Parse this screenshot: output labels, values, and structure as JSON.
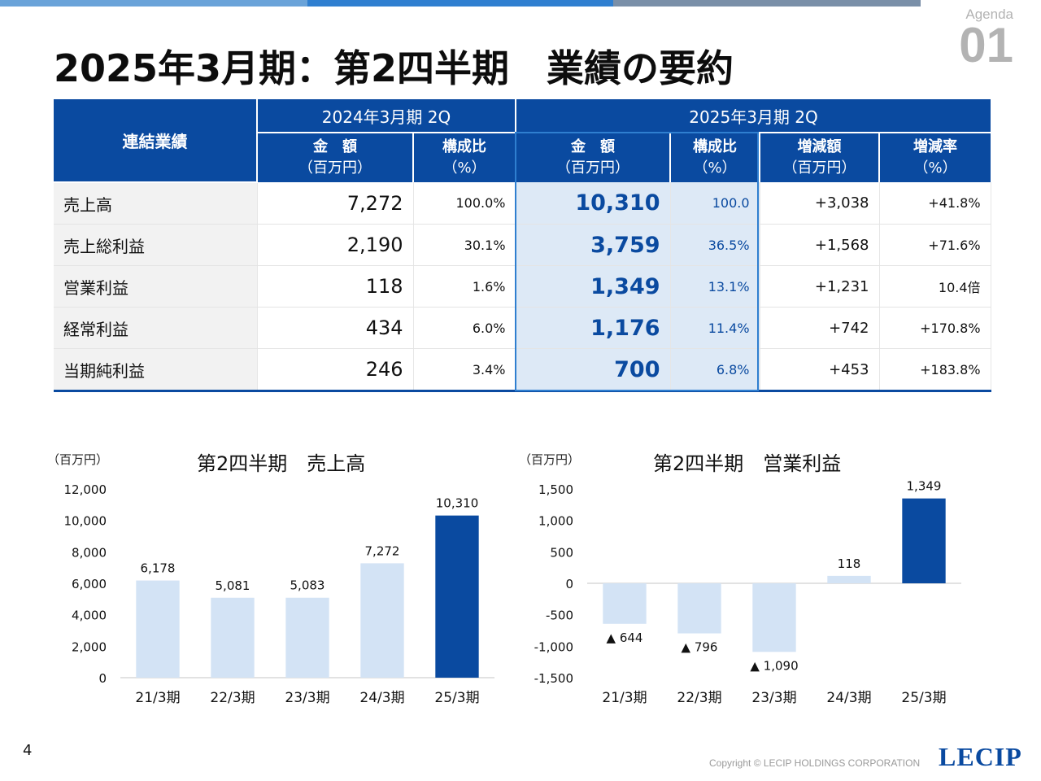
{
  "header": {
    "agenda_label": "Agenda",
    "agenda_number": "01",
    "title": "2025年3月期：第2四半期　業績の要約",
    "bar_colors": [
      "#6aa3d9",
      "#2f7fd0",
      "#7a8fa8"
    ]
  },
  "table": {
    "corner": "連結業績",
    "period_prev": "2024年3月期 2Q",
    "period_cur": "2025年3月期 2Q",
    "col_amount": "金　額",
    "col_amount_unit": "（百万円）",
    "col_ratio": "構成比",
    "col_ratio_unit": "（%）",
    "col_change": "増減額",
    "col_change_unit": "（百万円）",
    "col_rate": "増減率",
    "col_rate_unit": "（%）",
    "rows": [
      {
        "label": "売上高",
        "prev_amount": "7,272",
        "prev_ratio": "100.0%",
        "cur_amount": "10,310",
        "cur_ratio": "100.0",
        "change": "+3,038",
        "rate": "+41.8%"
      },
      {
        "label": "売上総利益",
        "prev_amount": "2,190",
        "prev_ratio": "30.1%",
        "cur_amount": "3,759",
        "cur_ratio": "36.5%",
        "change": "+1,568",
        "rate": "+71.6%"
      },
      {
        "label": "営業利益",
        "prev_amount": "118",
        "prev_ratio": "1.6%",
        "cur_amount": "1,349",
        "cur_ratio": "13.1%",
        "change": "+1,231",
        "rate": "10.4倍"
      },
      {
        "label": "経常利益",
        "prev_amount": "434",
        "prev_ratio": "6.0%",
        "cur_amount": "1,176",
        "cur_ratio": "11.4%",
        "change": "+742",
        "rate": "+170.8%"
      },
      {
        "label": "当期純利益",
        "prev_amount": "246",
        "prev_ratio": "3.4%",
        "cur_amount": "700",
        "cur_ratio": "6.8%",
        "change": "+453",
        "rate": "+183.8%"
      }
    ]
  },
  "chart_data": [
    {
      "type": "bar",
      "title": "第2四半期　売上高",
      "unit": "（百万円）",
      "categories": [
        "21/3期",
        "22/3期",
        "23/3期",
        "24/3期",
        "25/3期"
      ],
      "values": [
        6178,
        5081,
        5083,
        7272,
        10310
      ],
      "labels": [
        "6,178",
        "5,081",
        "5,083",
        "7,272",
        "10,310"
      ],
      "ylim": [
        0,
        12000
      ],
      "yticks": [
        0,
        2000,
        4000,
        6000,
        8000,
        10000,
        12000
      ],
      "ytick_labels": [
        "0",
        "2,000",
        "4,000",
        "6,000",
        "8,000",
        "10,000",
        "12,000"
      ],
      "colors": {
        "past": "#d3e3f5",
        "current": "#0a4aa0"
      }
    },
    {
      "type": "bar",
      "title": "第2四半期　営業利益",
      "unit": "（百万円）",
      "categories": [
        "21/3期",
        "22/3期",
        "23/3期",
        "24/3期",
        "25/3期"
      ],
      "values": [
        -644,
        -796,
        -1090,
        118,
        1349
      ],
      "labels": [
        "▲ 644",
        "▲ 796",
        "▲ 1,090",
        "118",
        "1,349"
      ],
      "ylim": [
        -1500,
        1500
      ],
      "yticks": [
        -1500,
        -1000,
        -500,
        0,
        500,
        1000,
        1500
      ],
      "ytick_labels": [
        "-1,500",
        "-1,000",
        "-500",
        "0",
        "500",
        "1,000",
        "1,500"
      ],
      "colors": {
        "past": "#d3e3f5",
        "current": "#0a4aa0"
      }
    }
  ],
  "footer": {
    "page_number": "4",
    "copyright": "Copyright © LECIP HOLDINGS CORPORATION",
    "logo": "LECIP"
  }
}
